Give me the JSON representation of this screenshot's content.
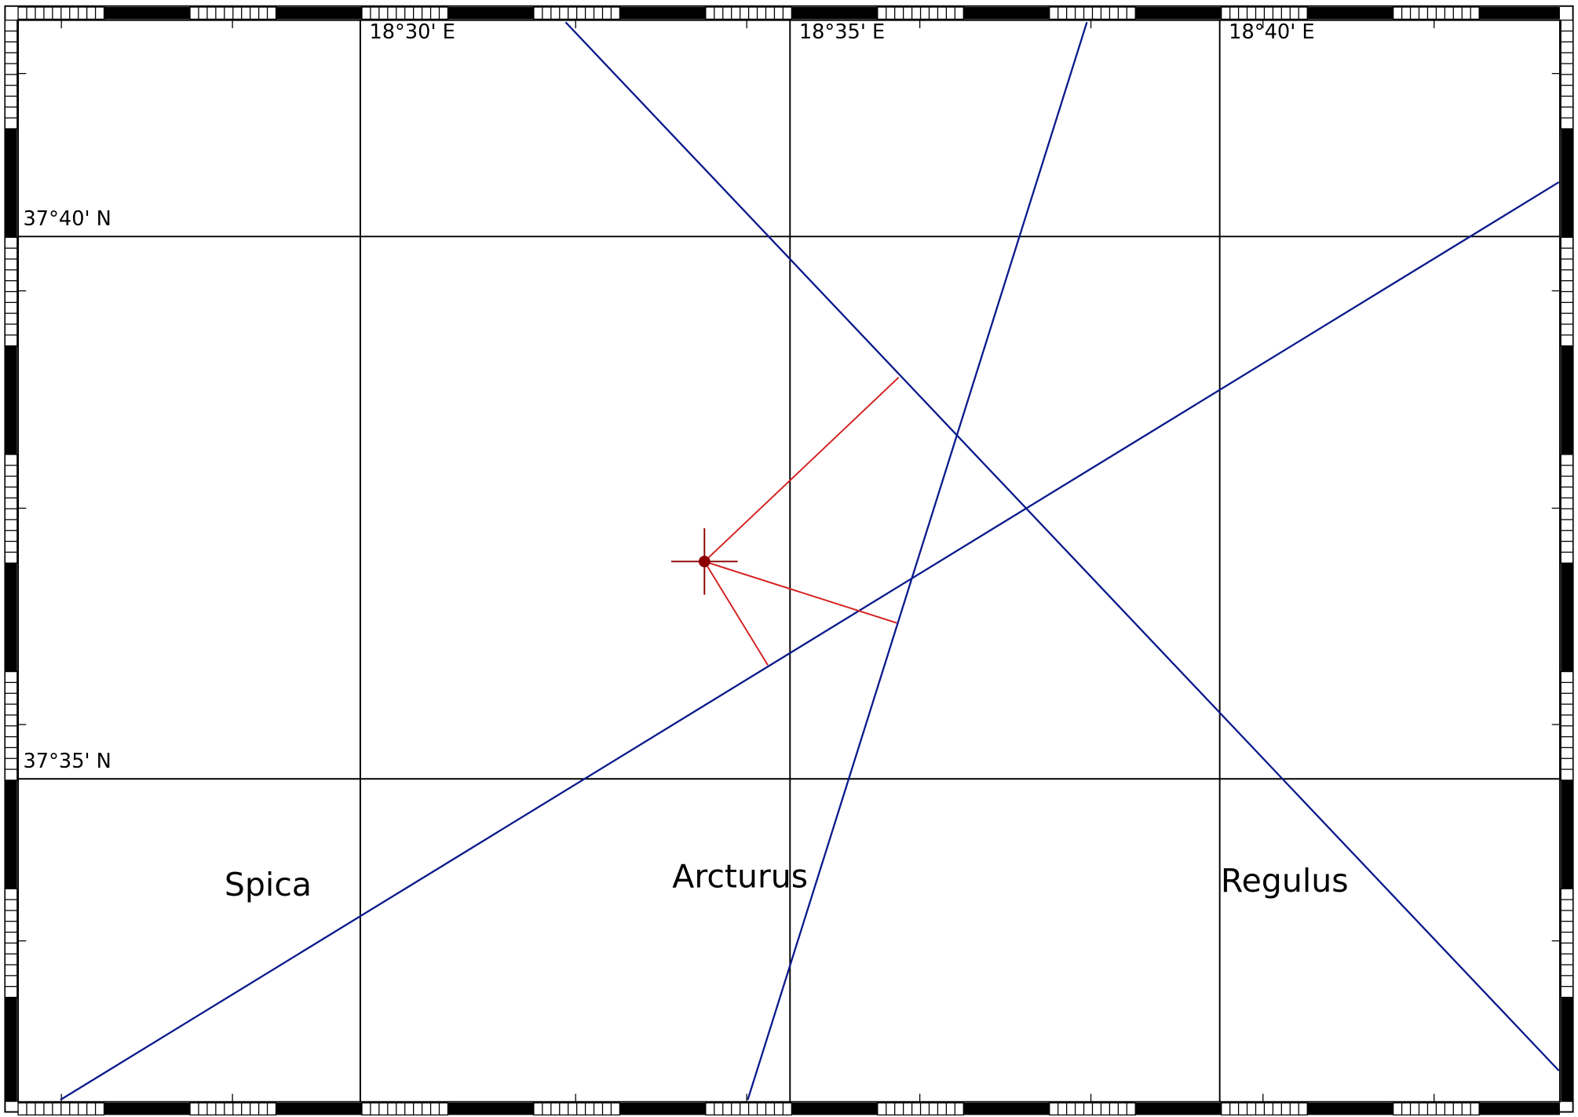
{
  "grid": {
    "longitudes": [
      "18°30' E",
      "18°35' E",
      "18°40' E"
    ],
    "latitudes": [
      "37°40' N",
      "37°35' N"
    ]
  },
  "stars": [
    "Spica",
    "Arcturus",
    "Regulus"
  ]
}
